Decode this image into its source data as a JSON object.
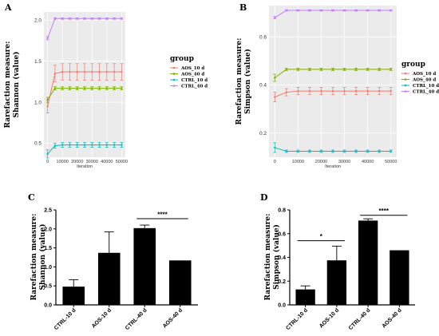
{
  "chart_data": [
    {
      "id": "A",
      "type": "line",
      "panel_label": "A",
      "ylabel": [
        "Rarefaction measure:",
        "Shannon (value)"
      ],
      "xlabel": "Iteration",
      "x": [
        0,
        5000,
        10000,
        15000,
        20000,
        25000,
        30000,
        35000,
        40000,
        45000,
        50000
      ],
      "x_ticks": [
        0,
        10000,
        20000,
        30000,
        40000,
        50000
      ],
      "xlim": [
        -2500,
        52500
      ],
      "ylim": [
        0.33,
        2.1
      ],
      "y_ticks": [
        "0.5",
        "1.0",
        "1.5",
        "2.0"
      ],
      "y_tick_values": [
        0.5,
        1.0,
        1.5,
        2.0
      ],
      "grid": true,
      "background": "#ebebeb",
      "legend_title": "group",
      "legend_position": "right",
      "series": [
        {
          "name": "AOS_10 d",
          "color": "#f8766d",
          "values": [
            0.95,
            1.35,
            1.37,
            1.37,
            1.37,
            1.37,
            1.37,
            1.37,
            1.37,
            1.37,
            1.37
          ],
          "error": [
            0.08,
            0.1,
            0.1,
            0.1,
            0.1,
            0.1,
            0.1,
            0.1,
            0.1,
            0.1,
            0.1
          ]
        },
        {
          "name": "AOS_40 d",
          "color": "#7cae00",
          "values": [
            1.03,
            1.17,
            1.17,
            1.17,
            1.17,
            1.17,
            1.17,
            1.17,
            1.17,
            1.17,
            1.17
          ],
          "error": [
            0.03,
            0.02,
            0.02,
            0.02,
            0.02,
            0.02,
            0.02,
            0.02,
            0.02,
            0.02,
            0.02
          ]
        },
        {
          "name": "CTRL_10 d",
          "color": "#00bfc4",
          "values": [
            0.37,
            0.47,
            0.48,
            0.48,
            0.48,
            0.48,
            0.48,
            0.48,
            0.48,
            0.48,
            0.48
          ],
          "error": [
            0.05,
            0.03,
            0.03,
            0.03,
            0.03,
            0.03,
            0.03,
            0.03,
            0.03,
            0.03,
            0.03
          ]
        },
        {
          "name": "CTRL_40 d",
          "color": "#c77cff",
          "values": [
            1.78,
            2.02,
            2.02,
            2.02,
            2.02,
            2.02,
            2.02,
            2.02,
            2.02,
            2.02,
            2.02
          ],
          "error": [
            0.02,
            0.01,
            0.01,
            0.01,
            0.01,
            0.01,
            0.01,
            0.01,
            0.01,
            0.01,
            0.01
          ]
        }
      ]
    },
    {
      "id": "B",
      "type": "line",
      "panel_label": "B",
      "ylabel": [
        "Rarefaction measure:",
        "Simpson (value)"
      ],
      "xlabel": "Iteration",
      "x": [
        0,
        5000,
        10000,
        15000,
        20000,
        25000,
        30000,
        35000,
        40000,
        45000,
        50000
      ],
      "x_ticks": [
        0,
        10000,
        20000,
        30000,
        40000,
        50000
      ],
      "xlim": [
        -2500,
        52500
      ],
      "ylim": [
        0.1,
        0.73
      ],
      "y_ticks": [
        "0.2",
        "0.4",
        "0.6"
      ],
      "y_tick_values": [
        0.2,
        0.4,
        0.6
      ],
      "grid": true,
      "background": "#ebebeb",
      "legend_title": "group",
      "legend_position": "right",
      "series": [
        {
          "name": "AOS_10 d",
          "color": "#f8766d",
          "values": [
            0.35,
            0.37,
            0.375,
            0.375,
            0.375,
            0.375,
            0.375,
            0.375,
            0.375,
            0.375,
            0.375
          ],
          "error": [
            0.02,
            0.015,
            0.015,
            0.015,
            0.015,
            0.015,
            0.015,
            0.015,
            0.015,
            0.015,
            0.015
          ]
        },
        {
          "name": "AOS_40 d",
          "color": "#7cae00",
          "values": [
            0.43,
            0.465,
            0.465,
            0.465,
            0.465,
            0.465,
            0.465,
            0.465,
            0.465,
            0.465,
            0.465
          ],
          "error": [
            0.015,
            0.005,
            0.005,
            0.005,
            0.005,
            0.005,
            0.005,
            0.005,
            0.005,
            0.005,
            0.005
          ]
        },
        {
          "name": "CTRL_10 d",
          "color": "#00bfc4",
          "values": [
            0.14,
            0.125,
            0.125,
            0.125,
            0.125,
            0.125,
            0.125,
            0.125,
            0.125,
            0.125,
            0.125
          ],
          "error": [
            0.02,
            0.005,
            0.005,
            0.005,
            0.005,
            0.005,
            0.005,
            0.005,
            0.005,
            0.005,
            0.005
          ]
        },
        {
          "name": "CTRL_40 d",
          "color": "#c77cff",
          "values": [
            0.68,
            0.71,
            0.71,
            0.71,
            0.71,
            0.71,
            0.71,
            0.71,
            0.71,
            0.71,
            0.71
          ],
          "error": [
            0.005,
            0.003,
            0.003,
            0.003,
            0.003,
            0.003,
            0.003,
            0.003,
            0.003,
            0.003,
            0.003
          ]
        }
      ]
    },
    {
      "id": "C",
      "type": "bar",
      "panel_label": "C",
      "ylabel": [
        "Rarefaction measure:",
        "Shannon (value)"
      ],
      "categories": [
        "CTRL-10 d",
        "AOS-10 d",
        "CTRL-40 d",
        "AOS-40 d"
      ],
      "values": [
        0.48,
        1.37,
        2.02,
        1.17
      ],
      "error": [
        0.18,
        0.55,
        0.08,
        0.0
      ],
      "ylim": [
        0,
        2.5
      ],
      "y_ticks": [
        "0.0",
        "0.5",
        "1.0",
        "1.5",
        "2.0",
        "2.5"
      ],
      "y_tick_values": [
        0.0,
        0.5,
        1.0,
        1.5,
        2.0,
        2.5
      ],
      "significance": [
        {
          "from": 2,
          "to": 3,
          "label": "****",
          "y": 2.27
        }
      ]
    },
    {
      "id": "D",
      "type": "bar",
      "panel_label": "D",
      "ylabel": [
        "Rarefaction measure:",
        "Simpson (value)"
      ],
      "categories": [
        "CTRL-10 d",
        "AOS-10 d",
        "CTRL-40 d",
        "AOS-40 d"
      ],
      "values": [
        0.13,
        0.375,
        0.71,
        0.46
      ],
      "error": [
        0.03,
        0.12,
        0.015,
        0.0
      ],
      "ylim": [
        0,
        0.8
      ],
      "y_ticks": [
        "0.0",
        "0.2",
        "0.4",
        "0.6",
        "0.8"
      ],
      "y_tick_values": [
        0.0,
        0.2,
        0.4,
        0.6,
        0.8
      ],
      "significance": [
        {
          "from": 0,
          "to": 1,
          "label": "*",
          "y": 0.54
        },
        {
          "from": 2,
          "to": 3,
          "label": "****",
          "y": 0.755
        }
      ]
    }
  ]
}
